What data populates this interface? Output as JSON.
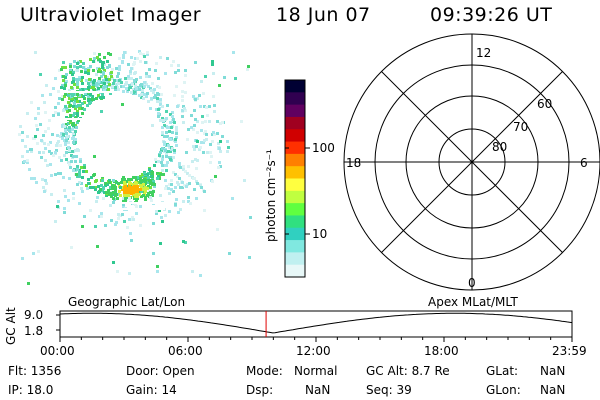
{
  "header": {
    "title": "Ultraviolet Imager",
    "date": "18 Jun 07",
    "time": "09:39:26 UT"
  },
  "colorbar": {
    "label": "photon cm⁻²s⁻¹",
    "ticks": [
      "100",
      "10"
    ],
    "colors": [
      "#000033",
      "#300050",
      "#600060",
      "#a00020",
      "#d00000",
      "#ff3000",
      "#ff8000",
      "#ffc000",
      "#ffff40",
      "#c0ff40",
      "#60ff40",
      "#30e080",
      "#30d0c0",
      "#80e8e0",
      "#c0f0f0",
      "#e8f8f8"
    ]
  },
  "polar": {
    "lat_labels": [
      "60",
      "70",
      "80"
    ],
    "mlt_labels": {
      "top": "12",
      "left": "18",
      "right": "6",
      "bottom": "0"
    }
  },
  "labels": {
    "geo": "Geographic Lat/Lon",
    "apex": "Apex MLat/MLT"
  },
  "altplot": {
    "ylabel": "GC Alt",
    "yticks": [
      "9.0",
      "1.8"
    ],
    "xticks": [
      "00:00",
      "06:00",
      "12:00",
      "18:00",
      "23:59"
    ],
    "marker_hour": 9.66
  },
  "info": {
    "flt": "Flt: 1356",
    "ip": "IP: 18.0",
    "door": "Door: Open",
    "gain": "Gain: 14",
    "mode_label": "Mode:",
    "mode_value": "Normal",
    "dsp_label": "Dsp:",
    "dsp_value": "NaN",
    "gcalt": "GC Alt: 8.7 Re",
    "seq": "Seq: 39",
    "glat_label": "GLat:",
    "glat_value": "NaN",
    "glon_label": "GLon:",
    "glon_value": "NaN"
  }
}
